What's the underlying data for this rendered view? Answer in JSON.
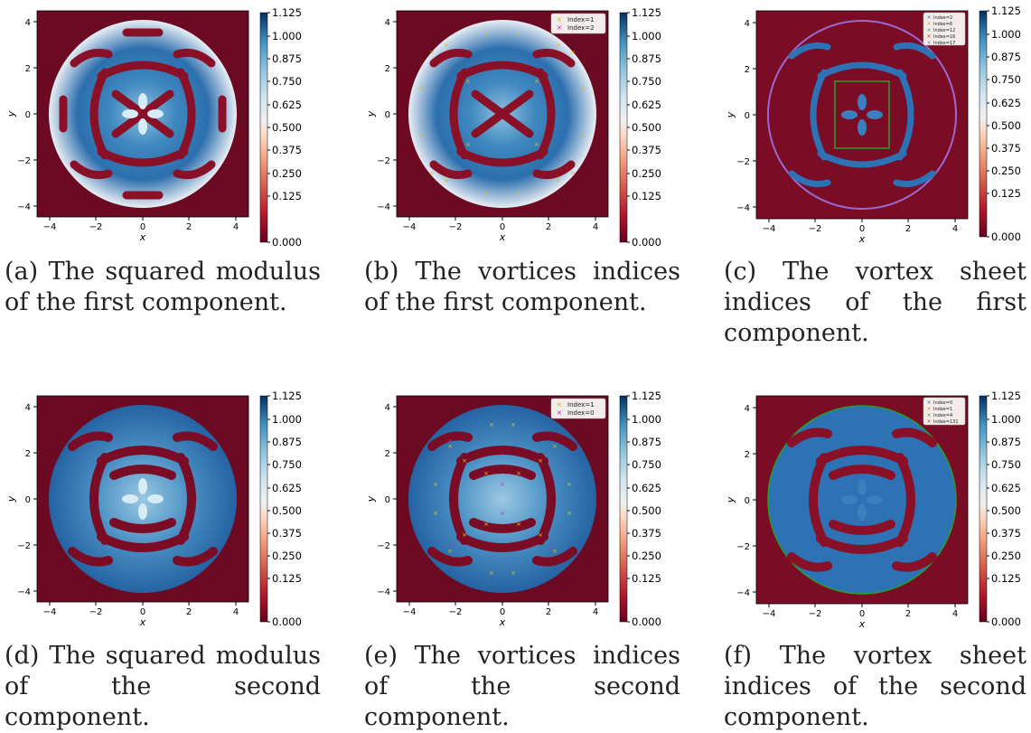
{
  "axes": {
    "x_ticks": [
      "−4",
      "−2",
      "0",
      "2",
      "4"
    ],
    "y_ticks": [
      "4",
      "2",
      "0",
      "−2",
      "−4"
    ],
    "xlabel": "x",
    "ylabel": "y"
  },
  "colorbar": {
    "ticks": [
      "1.125",
      "1.000",
      "0.875",
      "0.750",
      "0.625",
      "0.500",
      "0.375",
      "0.250",
      "0.125",
      "0.000"
    ]
  },
  "panels": [
    {
      "caption": "(a) The squared modulus of the first component.",
      "legend": []
    },
    {
      "caption": "(b) The vortices indices of the first component.",
      "legend": [
        {
          "label": "Index=1",
          "color": "#d4c022"
        },
        {
          "label": "Index=2",
          "color": "#c22fc4"
        }
      ]
    },
    {
      "caption": "(c) The vortex sheet indices of the first component.",
      "legend": [
        {
          "label": "Index=2",
          "color": "#2a64c8"
        },
        {
          "label": "Index=6",
          "color": "#f08020"
        },
        {
          "label": "Index=12",
          "color": "#28a028"
        },
        {
          "label": "Index=16",
          "color": "#d02828"
        },
        {
          "label": "Index=17",
          "color": "#9a6ad0"
        }
      ]
    },
    {
      "caption": "(d) The squared modulus of the second component.",
      "legend": []
    },
    {
      "caption": "(e) The vortices indices of the second component.",
      "legend": [
        {
          "label": "Index=1",
          "color": "#d4c022"
        },
        {
          "label": "Index=0",
          "color": "#c22fc4"
        }
      ]
    },
    {
      "caption": "(f) The vortex sheet indices of the second component.",
      "legend": [
        {
          "label": "Index=0",
          "color": "#2a64c8"
        },
        {
          "label": "Index=1",
          "color": "#f08020"
        },
        {
          "label": "Index=4",
          "color": "#28a028"
        },
        {
          "label": "Index=131",
          "color": "#d02828"
        }
      ]
    }
  ]
}
